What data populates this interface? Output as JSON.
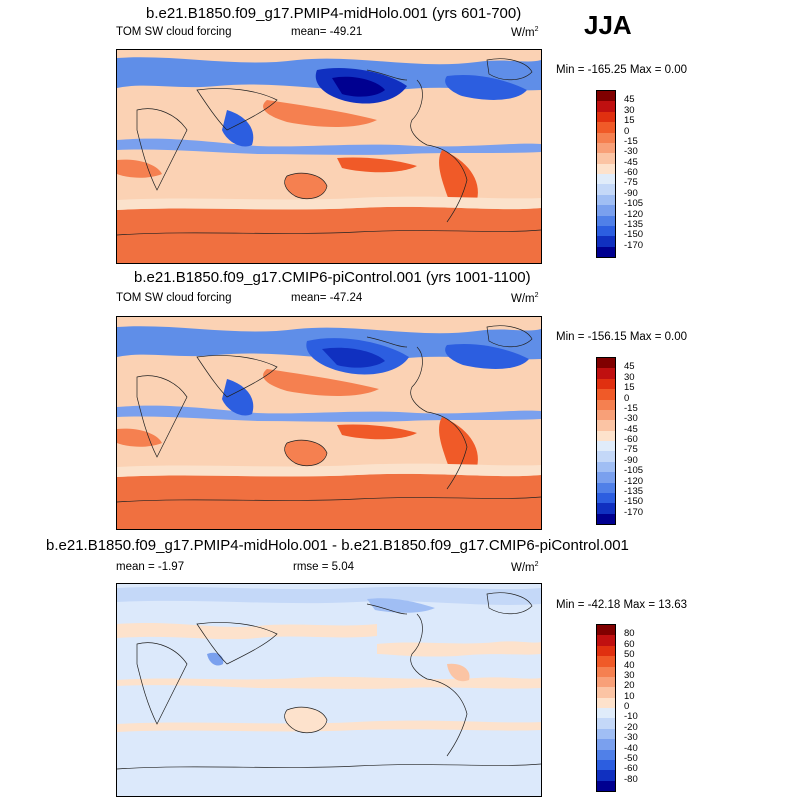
{
  "season": "JJA",
  "panels": [
    {
      "title": "b.e21.B1850.f09_g17.PMIP4-midHolo.001 (yrs 601-700)",
      "left_label": "TOM SW cloud forcing",
      "center_label": "mean= -49.21",
      "units": "W/m",
      "units_sup": "2",
      "minmax": "Min = -165.25 Max =   0.00",
      "colorbar_labels": [
        "45",
        "30",
        "15",
        "0",
        "-15",
        "-30",
        "-45",
        "-60",
        "-75",
        "-90",
        "-105",
        "-120",
        "-135",
        "-150",
        "-170"
      ]
    },
    {
      "title": "b.e21.B1850.f09_g17.CMIP6-piControl.001 (yrs 1001-1100)",
      "left_label": "TOM SW cloud forcing",
      "center_label": "mean= -47.24",
      "units": "W/m",
      "units_sup": "2",
      "minmax": "Min = -156.15 Max =   0.00",
      "colorbar_labels": [
        "45",
        "30",
        "15",
        "0",
        "-15",
        "-30",
        "-45",
        "-60",
        "-75",
        "-90",
        "-105",
        "-120",
        "-135",
        "-150",
        "-170"
      ]
    },
    {
      "title": "b.e21.B1850.f09_g17.PMIP4-midHolo.001 - b.e21.B1850.f09_g17.CMIP6-piControl.001",
      "left_label": "mean =  -1.97",
      "center_label": "rmse =  5.04",
      "units": "W/m",
      "units_sup": "2",
      "minmax": "Min = -42.18 Max =  13.63",
      "colorbar_labels": [
        "80",
        "60",
        "50",
        "40",
        "30",
        "20",
        "10",
        "0",
        "-10",
        "-20",
        "-30",
        "-40",
        "-50",
        "-60",
        "-80"
      ]
    }
  ],
  "colorbar_colors": [
    "#800000",
    "#c01010",
    "#e03010",
    "#f05a28",
    "#f58050",
    "#f8a078",
    "#fbc4a4",
    "#fde2cc",
    "#e0ecfa",
    "#c4d8f8",
    "#a0bef4",
    "#7aa0ee",
    "#5080e8",
    "#2c5ee0",
    "#1030c0",
    "#000090"
  ]
}
